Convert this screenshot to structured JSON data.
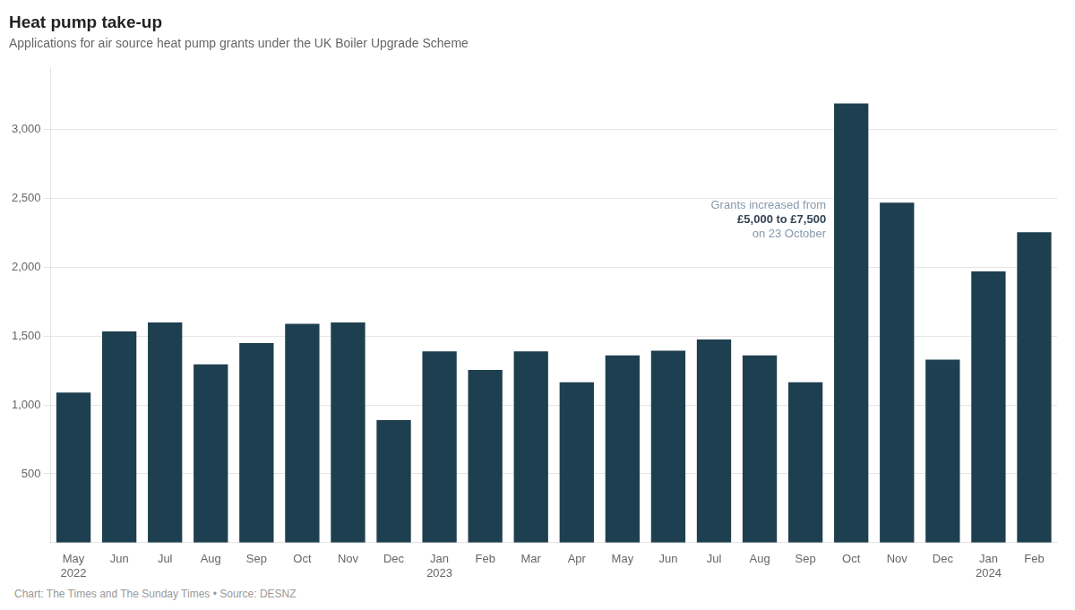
{
  "chart_data": {
    "type": "bar",
    "title": "Heat pump take-up",
    "subtitle": "Applications for air source heat pump grants under the UK Boiler Upgrade Scheme",
    "footer": "Chart: The Times and The Sunday Times • Source: DESNZ",
    "categories": [
      "May\n2022",
      "Jun",
      "Jul",
      "Aug",
      "Sep",
      "Oct",
      "Nov",
      "Dec",
      "Jan\n2023",
      "Feb",
      "Mar",
      "Apr",
      "May",
      "Jun",
      "Jul",
      "Aug",
      "Sep",
      "Oct",
      "Nov",
      "Dec",
      "Jan\n2024",
      "Feb"
    ],
    "values": [
      1090,
      1535,
      1600,
      1295,
      1450,
      1590,
      1600,
      890,
      1390,
      1255,
      1390,
      1165,
      1360,
      1395,
      1475,
      1360,
      1165,
      3190,
      2470,
      1330,
      1970,
      2255
    ],
    "color": "#1e3f4f",
    "ylim": [
      0,
      3450
    ],
    "yticks": [
      500,
      {
        "value": 1000,
        "label": "1,000"
      },
      {
        "value": 1500,
        "label": "1,500"
      },
      {
        "value": 2000,
        "label": "2,000"
      },
      {
        "value": 2500,
        "label": "2,500"
      },
      {
        "value": 3000,
        "label": "3,000"
      }
    ],
    "grid": true,
    "annotations": [
      {
        "x": 17,
        "y": 2200,
        "text": [
          "Grants increased from",
          "£5,000 to £7,500",
          "on 23 October"
        ],
        "colors": [
          "#8899aa",
          "#334455",
          "#8899aa"
        ]
      }
    ]
  }
}
